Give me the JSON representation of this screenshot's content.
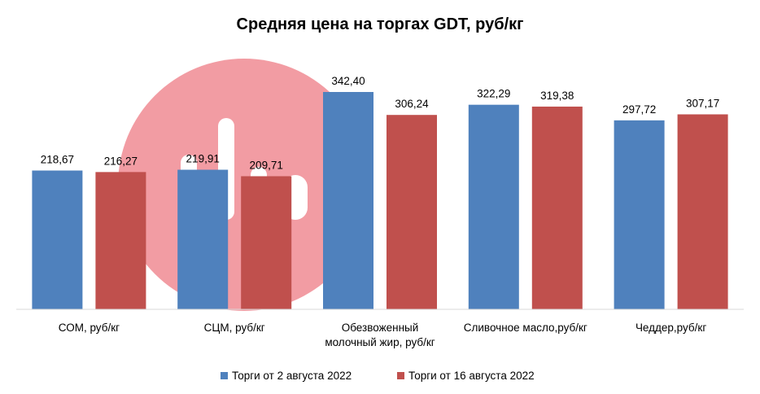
{
  "chart_data": {
    "type": "bar",
    "title": "Средняя цена на торгах GDT, руб/кг",
    "categories": [
      [
        "СОМ, руб/кг"
      ],
      [
        "СЦМ, руб/кг"
      ],
      [
        "Обезвоженный",
        "молочный жир, руб/кг"
      ],
      [
        "Сливочное масло,руб/кг"
      ],
      [
        "Чеддер,руб/кг"
      ]
    ],
    "series": [
      {
        "name": "Торги от 2 августа 2022",
        "color": "#4F81BD",
        "values": [
          218.67,
          219.91,
          342.4,
          322.29,
          297.72
        ],
        "labels": [
          "218,67",
          "219,91",
          "342,40",
          "322,29",
          "297,72"
        ]
      },
      {
        "name": "Торги от 16 августа 2022",
        "color": "#C0504D",
        "values": [
          216.27,
          209.71,
          306.24,
          319.38,
          307.17
        ],
        "labels": [
          "216,27",
          "209,71",
          "306,24",
          "319,38",
          "307,17"
        ]
      }
    ],
    "ylim": [
      0,
      342.4
    ],
    "grid": false,
    "legend": "bottom"
  },
  "watermark": {
    "name": "dia-logo",
    "color": "#F29CA3"
  }
}
